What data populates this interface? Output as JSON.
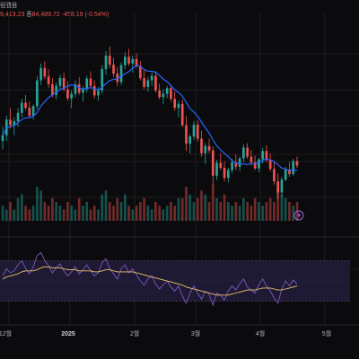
{
  "header": {
    "label_fragment": "림캠음",
    "open_fragment": "9,413.23",
    "close_label": "종",
    "close_value": "84,489.72",
    "change": "-458.19 (-0.54%)"
  },
  "colors": {
    "up": "#26a69a",
    "down": "#ef5350",
    "ma": "#2962ff",
    "rsi": "#7e57c2",
    "rsi_ma": "#e9c46a",
    "rsi_band": "#1f1a33",
    "background": "#0b0b0d",
    "grid": "#1c1c20"
  },
  "icons": {
    "replay": "lightning-icon"
  },
  "chart_data": [
    {
      "type": "candlestick",
      "title": "",
      "series": [
        {
          "name": "",
          "kind": "ohlc",
          "values": [
            [
              59000,
              61500,
              57500,
              60000
            ],
            [
              60000,
              63500,
              59000,
              62800
            ],
            [
              62800,
              64800,
              61200,
              61800
            ],
            [
              61800,
              63200,
              60000,
              62500
            ],
            [
              62500,
              64800,
              61500,
              64000
            ],
            [
              64000,
              66500,
              63200,
              65800
            ],
            [
              65800,
              67200,
              64500,
              64900
            ],
            [
              64900,
              66000,
              63000,
              63500
            ],
            [
              63500,
              65500,
              62800,
              65200
            ],
            [
              65200,
              70500,
              64600,
              69800
            ],
            [
              69800,
              72800,
              69000,
              72000
            ],
            [
              72000,
              73200,
              70000,
              70500
            ],
            [
              70500,
              71800,
              68500,
              69100
            ],
            [
              69100,
              70200,
              66800,
              67200
            ],
            [
              67200,
              69400,
              66400,
              68800
            ],
            [
              68800,
              70800,
              68000,
              70200
            ],
            [
              70200,
              71200,
              67800,
              68200
            ],
            [
              68200,
              69600,
              66200,
              66600
            ],
            [
              66600,
              68000,
              64800,
              67400
            ],
            [
              67400,
              69800,
              66800,
              69100
            ],
            [
              69100,
              70400,
              67200,
              67600
            ],
            [
              67600,
              68800,
              66000,
              68200
            ],
            [
              68200,
              70600,
              67600,
              70100
            ],
            [
              70100,
              71400,
              68400,
              68800
            ],
            [
              68800,
              69800,
              66600,
              67100
            ],
            [
              67100,
              68600,
              66200,
              68000
            ],
            [
              68000,
              72500,
              67400,
              71800
            ],
            [
              71800,
              75000,
              70800,
              74200
            ],
            [
              74200,
              75800,
              72000,
              72600
            ],
            [
              72600,
              73800,
              70400,
              71000
            ],
            [
              71000,
              72200,
              68800,
              69500
            ],
            [
              69500,
              73000,
              69000,
              72500
            ],
            [
              72500,
              74800,
              71800,
              74000
            ],
            [
              74000,
              75400,
              72400,
              72800
            ],
            [
              72800,
              74200,
              71200,
              73600
            ],
            [
              73600,
              74600,
              72000,
              72400
            ],
            [
              72400,
              73200,
              69800,
              70200
            ],
            [
              70200,
              71600,
              68200,
              68600
            ],
            [
              68600,
              70400,
              67800,
              69800
            ],
            [
              69800,
              71200,
              68800,
              70600
            ],
            [
              70600,
              71400,
              67600,
              68000
            ],
            [
              68000,
              69200,
              66400,
              66800
            ],
            [
              66800,
              68200,
              65600,
              67400
            ],
            [
              67400,
              68800,
              66600,
              68400
            ],
            [
              68400,
              69000,
              66000,
              66500
            ],
            [
              66500,
              67800,
              64400,
              64900
            ],
            [
              64900,
              66200,
              63200,
              65600
            ],
            [
              65600,
              66400,
              61500,
              61800
            ],
            [
              61800,
              63400,
              57200,
              58500
            ],
            [
              58500,
              60200,
              56800,
              59800
            ],
            [
              59800,
              62500,
              59200,
              61900
            ],
            [
              61900,
              62600,
              58800,
              59400
            ],
            [
              59400,
              60800,
              56200,
              56800
            ],
            [
              56800,
              58600,
              54900,
              58100
            ],
            [
              58100,
              59400,
              56800,
              57300
            ],
            [
              57300,
              58000,
              51500,
              52800
            ],
            [
              52800,
              55600,
              52000,
              55100
            ],
            [
              55100,
              56800,
              53800,
              54200
            ],
            [
              54200,
              55400,
              51800,
              52400
            ],
            [
              52400,
              54200,
              51600,
              53800
            ],
            [
              53800,
              55800,
              53200,
              55200
            ],
            [
              55200,
              56600,
              53800,
              54400
            ],
            [
              54400,
              56200,
              53600,
              55900
            ],
            [
              55900,
              58400,
              55200,
              57800
            ],
            [
              57800,
              58600,
              55800,
              56200
            ],
            [
              56200,
              57400,
              54600,
              55200
            ],
            [
              55200,
              56400,
              53800,
              54100
            ],
            [
              54100,
              56000,
              53400,
              55700
            ],
            [
              55700,
              57800,
              55000,
              57200
            ],
            [
              57200,
              58200,
              55200,
              55600
            ],
            [
              55600,
              56800,
              53600,
              54000
            ],
            [
              54000,
              55200,
              51200,
              51800
            ],
            [
              51800,
              53200,
              48600,
              49800
            ],
            [
              49800,
              52600,
              49200,
              52100
            ],
            [
              52100,
              54400,
              51800,
              53900
            ],
            [
              53900,
              55200,
              52600,
              53100
            ],
            [
              53100,
              55800,
              52800,
              55400
            ],
            [
              55400,
              56200,
              54200,
              54600
            ]
          ]
        }
      ],
      "x_tick_labels": [
        "12월",
        "2025",
        "2월",
        "3월",
        "4월",
        "5월"
      ],
      "grid": true
    },
    {
      "type": "bar",
      "title": "",
      "series": [
        {
          "name": "",
          "kind": "volume",
          "values": [
            4,
            3,
            5,
            3,
            6,
            7,
            4,
            3,
            4,
            9,
            8,
            5,
            4,
            6,
            5,
            4,
            3,
            5,
            4,
            3,
            6,
            4,
            5,
            3,
            4,
            3,
            7,
            8,
            5,
            4,
            6,
            5,
            7,
            4,
            3,
            4,
            5,
            6,
            4,
            3,
            5,
            4,
            3,
            4,
            5,
            4,
            6,
            6,
            9,
            7,
            5,
            6,
            8,
            7,
            5,
            10,
            6,
            5,
            7,
            5,
            4,
            5,
            4,
            6,
            5,
            4,
            6,
            5,
            4,
            5,
            6,
            5,
            9,
            7,
            6,
            5,
            4,
            5
          ]
        }
      ]
    },
    {
      "type": "line",
      "title": "",
      "ylim": [
        10,
        90
      ],
      "band": [
        30,
        70
      ],
      "series": [
        {
          "name": "",
          "kind": "rsi",
          "values": [
            55,
            62,
            58,
            60,
            66,
            70,
            62,
            57,
            64,
            75,
            78,
            70,
            65,
            58,
            63,
            67,
            60,
            55,
            59,
            64,
            57,
            61,
            66,
            60,
            55,
            58,
            68,
            72,
            62,
            57,
            52,
            62,
            66,
            58,
            62,
            56,
            50,
            46,
            52,
            55,
            47,
            42,
            46,
            50,
            44,
            40,
            45,
            35,
            28,
            38,
            45,
            38,
            32,
            40,
            37,
            26,
            38,
            36,
            31,
            40,
            45,
            41,
            47,
            52,
            44,
            41,
            38,
            46,
            52,
            45,
            40,
            33,
            28,
            42,
            50,
            45,
            51,
            47
          ]
        },
        {
          "name": "",
          "kind": "rsi-ma",
          "values": [
            52,
            54,
            55,
            56,
            57,
            59,
            60,
            60,
            60,
            61,
            63,
            64,
            64,
            63,
            63,
            63,
            62,
            61,
            61,
            61,
            60,
            60,
            60,
            60,
            59,
            59,
            60,
            61,
            61,
            60,
            59,
            59,
            59,
            59,
            59,
            58,
            57,
            56,
            55,
            54,
            53,
            52,
            51,
            50,
            49,
            48,
            47,
            46,
            44,
            43,
            42,
            41,
            40,
            39,
            38,
            37,
            36,
            36,
            36,
            36,
            37,
            38,
            39,
            40,
            41,
            41,
            41,
            42,
            43,
            43,
            43,
            42,
            41,
            41,
            42,
            43,
            44,
            45
          ]
        }
      ]
    }
  ]
}
